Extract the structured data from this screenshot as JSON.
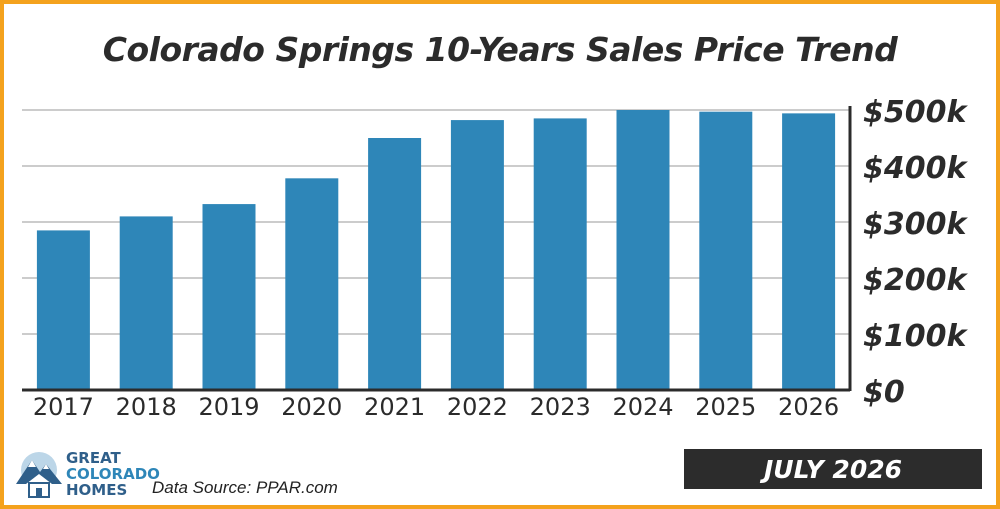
{
  "title": "Colorado Springs 10-Years Sales Price Trend",
  "source": "Data Source: PPAR.com",
  "date_label": "JULY 2026",
  "logo": {
    "line1": "GREAT",
    "line2": "COLORADO",
    "line3": "HOMES"
  },
  "colors": {
    "bar": "#2e86b8",
    "border": "#f4a21d",
    "grid": "#9a9a9a",
    "banner": "#2c2c2c"
  },
  "chart_data": {
    "type": "bar",
    "title": "Colorado Springs 10-Years Sales Price Trend",
    "categories": [
      "2017",
      "2018",
      "2019",
      "2020",
      "2021",
      "2022",
      "2023",
      "2024",
      "2025",
      "2026"
    ],
    "values": [
      285000,
      310000,
      332000,
      378000,
      450000,
      482000,
      485000,
      500000,
      497000,
      494000
    ],
    "ylim": [
      0,
      500000
    ],
    "yticks": [
      0,
      100000,
      200000,
      300000,
      400000,
      500000
    ],
    "ytick_labels": [
      "$0",
      "$100k",
      "$200k",
      "$300k",
      "$400k",
      "$500k"
    ],
    "y_axis_side": "right",
    "grid": true,
    "xlabel": "",
    "ylabel": ""
  }
}
